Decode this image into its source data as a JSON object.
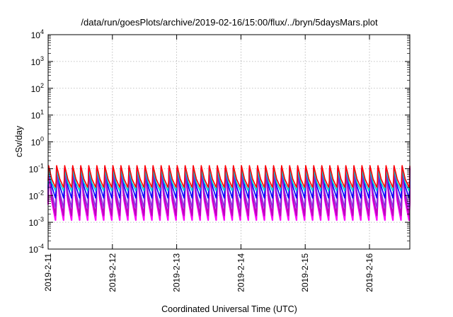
{
  "chart_data": {
    "type": "line",
    "title": "/data/run/goesPlots/archive/2019-02-16/15:00/flux/../bryn/5daysMars.plot",
    "xlabel": "Coordinated Universal Time (UTC)",
    "ylabel": "cSv/day",
    "yscale": "log",
    "ylim": [
      0.0001,
      10000
    ],
    "xlim": [
      "2019-02-11",
      "2019-02-16T16:00"
    ],
    "xticks": [
      "2019-2-11",
      "2019-2-12",
      "2019-2-13",
      "2019-2-14",
      "2019-2-15",
      "2019-2-16"
    ],
    "yticks": [
      {
        "base": "10",
        "exp": "-4"
      },
      {
        "base": "10",
        "exp": "-3"
      },
      {
        "base": "10",
        "exp": "-2"
      },
      {
        "base": "10",
        "exp": "-1"
      },
      {
        "base": "10",
        "exp": "0"
      },
      {
        "base": "10",
        "exp": "1"
      },
      {
        "base": "10",
        "exp": "2"
      },
      {
        "base": "10",
        "exp": "3"
      },
      {
        "base": "10",
        "exp": "4"
      }
    ],
    "grid": true,
    "legend": "none",
    "period_hours": 3,
    "series": [
      {
        "color": "#ff00ff",
        "peak": 0.105,
        "trough": 0.0012
      },
      {
        "color": "#c000c0",
        "peak": 0.1,
        "trough": 0.0018
      },
      {
        "color": "#8a2be2",
        "peak": 0.11,
        "trough": 0.0035
      },
      {
        "color": "#0000ff",
        "peak": 0.12,
        "trough": 0.008
      },
      {
        "color": "#00ced1",
        "peak": 0.09,
        "trough": 0.015
      },
      {
        "color": "#ff0000",
        "peak": 0.13,
        "trough": 0.02
      }
    ]
  }
}
